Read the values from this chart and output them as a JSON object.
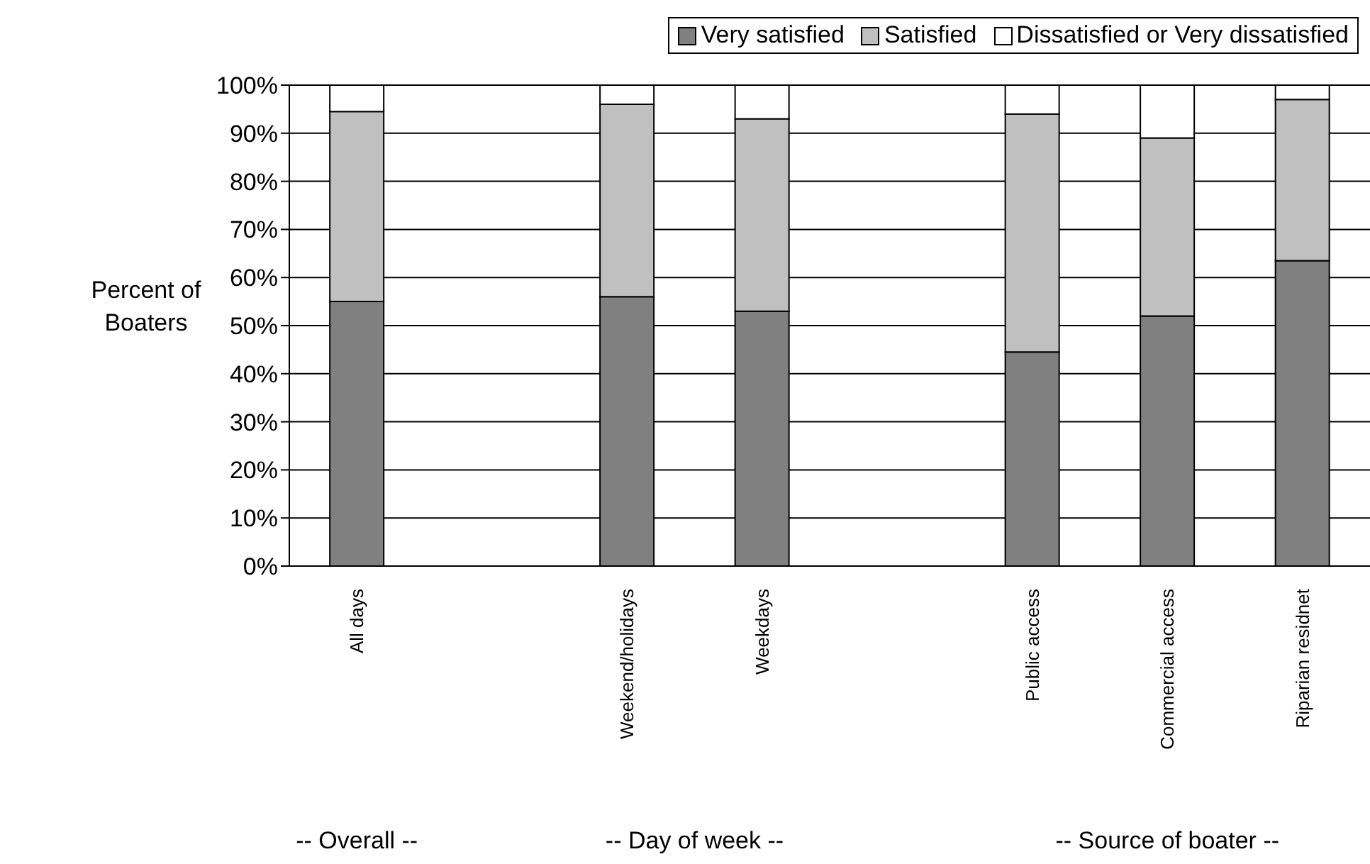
{
  "chart_data": {
    "type": "bar",
    "stacked": true,
    "ylabel": "Percent of Boaters",
    "categories": [
      "All days",
      null,
      "Weekend/holidays",
      "Weekdays",
      null,
      "Public access",
      "Commercial access",
      "Riparian residnet"
    ],
    "series": [
      {
        "name": "Very satisfied",
        "color": "#808080",
        "values": [
          55,
          null,
          56,
          53,
          null,
          44.5,
          52,
          63.5
        ]
      },
      {
        "name": "Satisfied",
        "color": "#c0c0c0",
        "values": [
          39.5,
          null,
          40,
          40,
          null,
          49.5,
          37,
          33.5
        ]
      },
      {
        "name": "Dissatisfied or Very dissatisfied",
        "color": "#ffffff",
        "values": [
          5.5,
          null,
          4,
          7,
          null,
          6,
          11,
          3
        ]
      }
    ],
    "ylim": [
      0,
      100
    ],
    "yticks": [
      {
        "value": 0,
        "label": "0%"
      },
      {
        "value": 10,
        "label": "10%"
      },
      {
        "value": 20,
        "label": "20%"
      },
      {
        "value": 30,
        "label": "30%"
      },
      {
        "value": 40,
        "label": "40%"
      },
      {
        "value": 50,
        "label": "50%"
      },
      {
        "value": 60,
        "label": "60%"
      },
      {
        "value": 70,
        "label": "70%"
      },
      {
        "value": 80,
        "label": "80%"
      },
      {
        "value": 90,
        "label": "90%"
      },
      {
        "value": 100,
        "label": "100%"
      }
    ],
    "grid": "y",
    "legend": "top right",
    "annotations": [
      "-- Overall --",
      "-- Day of week --",
      "-- Source of boater --"
    ]
  }
}
